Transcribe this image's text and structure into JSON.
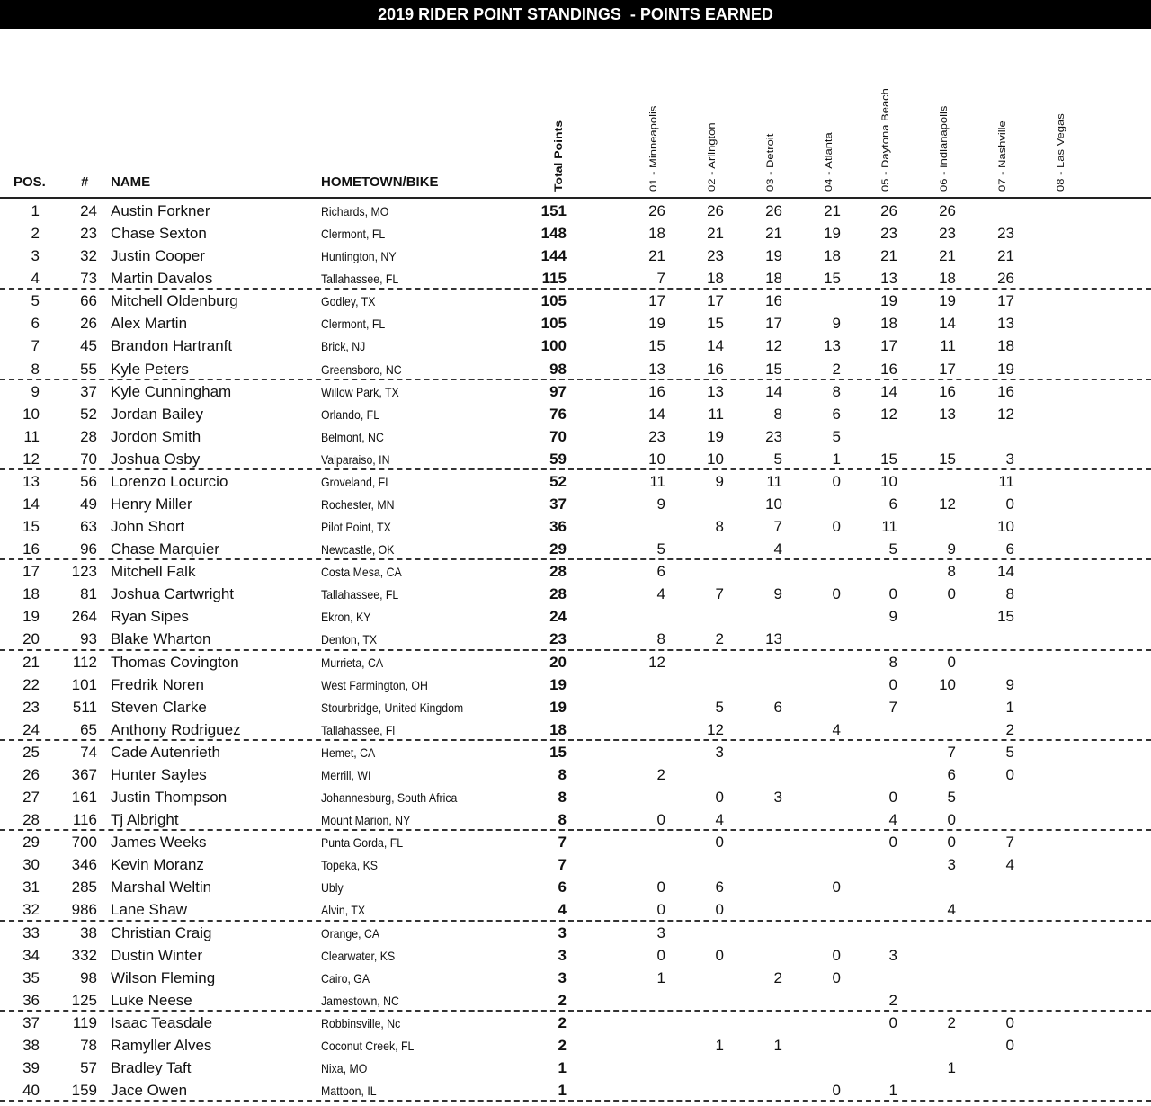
{
  "title": "2019 RIDER POINT STANDINGS  - POINTS EARNED",
  "headers": {
    "pos": "POS.",
    "num": "#",
    "name": "NAME",
    "hometown": "HOMETOWN/BIKE",
    "total": "Total Points",
    "races": [
      "01 - Minneapolis",
      "02 - Arlington",
      "03 - Detroit",
      "04 - Atlanta",
      "05 - Daytona Beach",
      "06 - Indianapolis",
      "07 - Nashville",
      "08 - Las Vegas"
    ]
  },
  "rows": [
    {
      "pos": "1",
      "num": "24",
      "name": "Austin Forkner",
      "town": "Richards, MO",
      "total": "151",
      "pts": [
        "26",
        "26",
        "26",
        "21",
        "26",
        "26",
        "",
        ""
      ]
    },
    {
      "pos": "2",
      "num": "23",
      "name": "Chase Sexton",
      "town": "Clermont, FL",
      "total": "148",
      "pts": [
        "18",
        "21",
        "21",
        "19",
        "23",
        "23",
        "23",
        ""
      ]
    },
    {
      "pos": "3",
      "num": "32",
      "name": "Justin Cooper",
      "town": "Huntington, NY",
      "total": "144",
      "pts": [
        "21",
        "23",
        "19",
        "18",
        "21",
        "21",
        "21",
        ""
      ]
    },
    {
      "pos": "4",
      "num": "73",
      "name": "Martin Davalos",
      "town": "Tallahassee, FL",
      "total": "115",
      "pts": [
        "7",
        "18",
        "18",
        "15",
        "13",
        "18",
        "26",
        ""
      ]
    },
    {
      "pos": "5",
      "num": "66",
      "name": "Mitchell Oldenburg",
      "town": "Godley, TX",
      "total": "105",
      "pts": [
        "17",
        "17",
        "16",
        "",
        "19",
        "19",
        "17",
        ""
      ]
    },
    {
      "pos": "6",
      "num": "26",
      "name": "Alex Martin",
      "town": "Clermont, FL",
      "total": "105",
      "pts": [
        "19",
        "15",
        "17",
        "9",
        "18",
        "14",
        "13",
        ""
      ]
    },
    {
      "pos": "7",
      "num": "45",
      "name": "Brandon Hartranft",
      "town": "Brick, NJ",
      "total": "100",
      "pts": [
        "15",
        "14",
        "12",
        "13",
        "17",
        "11",
        "18",
        ""
      ]
    },
    {
      "pos": "8",
      "num": "55",
      "name": "Kyle Peters",
      "town": "Greensboro, NC",
      "total": "98",
      "pts": [
        "13",
        "16",
        "15",
        "2",
        "16",
        "17",
        "19",
        ""
      ]
    },
    {
      "pos": "9",
      "num": "37",
      "name": "Kyle Cunningham",
      "town": "Willow Park, TX",
      "total": "97",
      "pts": [
        "16",
        "13",
        "14",
        "8",
        "14",
        "16",
        "16",
        ""
      ]
    },
    {
      "pos": "10",
      "num": "52",
      "name": "Jordan Bailey",
      "town": "Orlando, FL",
      "total": "76",
      "pts": [
        "14",
        "11",
        "8",
        "6",
        "12",
        "13",
        "12",
        ""
      ]
    },
    {
      "pos": "11",
      "num": "28",
      "name": "Jordon Smith",
      "town": "Belmont, NC",
      "total": "70",
      "pts": [
        "23",
        "19",
        "23",
        "5",
        "",
        "",
        "",
        ""
      ]
    },
    {
      "pos": "12",
      "num": "70",
      "name": "Joshua Osby",
      "town": "Valparaiso, IN",
      "total": "59",
      "pts": [
        "10",
        "10",
        "5",
        "1",
        "15",
        "15",
        "3",
        ""
      ]
    },
    {
      "pos": "13",
      "num": "56",
      "name": "Lorenzo Locurcio",
      "town": "Groveland, FL",
      "total": "52",
      "pts": [
        "11",
        "9",
        "11",
        "0",
        "10",
        "",
        "11",
        ""
      ]
    },
    {
      "pos": "14",
      "num": "49",
      "name": "Henry Miller",
      "town": "Rochester, MN",
      "total": "37",
      "pts": [
        "9",
        "",
        "10",
        "",
        "6",
        "12",
        "0",
        ""
      ]
    },
    {
      "pos": "15",
      "num": "63",
      "name": "John Short",
      "town": "Pilot Point, TX",
      "total": "36",
      "pts": [
        "",
        "8",
        "7",
        "0",
        "11",
        "",
        "10",
        ""
      ]
    },
    {
      "pos": "16",
      "num": "96",
      "name": "Chase Marquier",
      "town": "Newcastle, OK",
      "total": "29",
      "pts": [
        "5",
        "",
        "4",
        "",
        "5",
        "9",
        "6",
        ""
      ]
    },
    {
      "pos": "17",
      "num": "123",
      "name": "Mitchell Falk",
      "town": "Costa Mesa, CA",
      "total": "28",
      "pts": [
        "6",
        "",
        "",
        "",
        "",
        "8",
        "14",
        ""
      ]
    },
    {
      "pos": "18",
      "num": "81",
      "name": "Joshua Cartwright",
      "town": "Tallahassee, FL",
      "total": "28",
      "pts": [
        "4",
        "7",
        "9",
        "0",
        "0",
        "0",
        "8",
        ""
      ]
    },
    {
      "pos": "19",
      "num": "264",
      "name": "Ryan Sipes",
      "town": "Ekron, KY",
      "total": "24",
      "pts": [
        "",
        "",
        "",
        "",
        "9",
        "",
        "15",
        ""
      ]
    },
    {
      "pos": "20",
      "num": "93",
      "name": "Blake Wharton",
      "town": "Denton, TX",
      "total": "23",
      "pts": [
        "8",
        "2",
        "13",
        "",
        "",
        "",
        "",
        ""
      ]
    },
    {
      "pos": "21",
      "num": "112",
      "name": "Thomas Covington",
      "town": "Murrieta, CA",
      "total": "20",
      "pts": [
        "12",
        "",
        "",
        "",
        "8",
        "0",
        "",
        ""
      ]
    },
    {
      "pos": "22",
      "num": "101",
      "name": "Fredrik Noren",
      "town": "West Farmington, OH",
      "total": "19",
      "pts": [
        "",
        "",
        "",
        "",
        "0",
        "10",
        "9",
        ""
      ]
    },
    {
      "pos": "23",
      "num": "511",
      "name": "Steven Clarke",
      "town": "Stourbridge, United Kingdom",
      "total": "19",
      "pts": [
        "",
        "5",
        "6",
        "",
        "7",
        "",
        "1",
        ""
      ]
    },
    {
      "pos": "24",
      "num": "65",
      "name": "Anthony Rodriguez",
      "town": "Tallahassee, Fl",
      "total": "18",
      "pts": [
        "",
        "12",
        "",
        "4",
        "",
        "",
        "2",
        ""
      ]
    },
    {
      "pos": "25",
      "num": "74",
      "name": "Cade Autenrieth",
      "town": "Hemet, CA",
      "total": "15",
      "pts": [
        "",
        "3",
        "",
        "",
        "",
        "7",
        "5",
        ""
      ]
    },
    {
      "pos": "26",
      "num": "367",
      "name": "Hunter Sayles",
      "town": "Merrill, WI",
      "total": "8",
      "pts": [
        "2",
        "",
        "",
        "",
        "",
        "6",
        "0",
        ""
      ]
    },
    {
      "pos": "27",
      "num": "161",
      "name": "Justin Thompson",
      "town": "Johannesburg, South Africa",
      "total": "8",
      "pts": [
        "",
        "0",
        "3",
        "",
        "0",
        "5",
        "",
        ""
      ]
    },
    {
      "pos": "28",
      "num": "116",
      "name": "Tj Albright",
      "town": "Mount Marion, NY",
      "total": "8",
      "pts": [
        "0",
        "4",
        "",
        "",
        "4",
        "0",
        "",
        ""
      ]
    },
    {
      "pos": "29",
      "num": "700",
      "name": "James Weeks",
      "town": "Punta Gorda, FL",
      "total": "7",
      "pts": [
        "",
        "0",
        "",
        "",
        "0",
        "0",
        "7",
        ""
      ]
    },
    {
      "pos": "30",
      "num": "346",
      "name": "Kevin Moranz",
      "town": "Topeka, KS",
      "total": "7",
      "pts": [
        "",
        "",
        "",
        "",
        "",
        "3",
        "4",
        ""
      ]
    },
    {
      "pos": "31",
      "num": "285",
      "name": "Marshal Weltin",
      "town": "Ubly",
      "total": "6",
      "pts": [
        "0",
        "6",
        "",
        "0",
        "",
        "",
        "",
        ""
      ]
    },
    {
      "pos": "32",
      "num": "986",
      "name": "Lane Shaw",
      "town": "Alvin, TX",
      "total": "4",
      "pts": [
        "0",
        "0",
        "",
        "",
        "",
        "4",
        "",
        ""
      ]
    },
    {
      "pos": "33",
      "num": "38",
      "name": "Christian Craig",
      "town": "Orange, CA",
      "total": "3",
      "pts": [
        "3",
        "",
        "",
        "",
        "",
        "",
        "",
        ""
      ]
    },
    {
      "pos": "34",
      "num": "332",
      "name": "Dustin Winter",
      "town": "Clearwater, KS",
      "total": "3",
      "pts": [
        "0",
        "0",
        "",
        "0",
        "3",
        "",
        "",
        ""
      ]
    },
    {
      "pos": "35",
      "num": "98",
      "name": "Wilson Fleming",
      "town": "Cairo, GA",
      "total": "3",
      "pts": [
        "1",
        "",
        "2",
        "0",
        "",
        "",
        "",
        ""
      ]
    },
    {
      "pos": "36",
      "num": "125",
      "name": "Luke Neese",
      "town": "Jamestown, NC",
      "total": "2",
      "pts": [
        "",
        "",
        "",
        "",
        "2",
        "",
        "",
        ""
      ]
    },
    {
      "pos": "37",
      "num": "119",
      "name": "Isaac Teasdale",
      "town": "Robbinsville, Nc",
      "total": "2",
      "pts": [
        "",
        "",
        "",
        "",
        "0",
        "2",
        "0",
        ""
      ]
    },
    {
      "pos": "38",
      "num": "78",
      "name": "Ramyller Alves",
      "town": "Coconut Creek, FL",
      "total": "2",
      "pts": [
        "",
        "1",
        "1",
        "",
        "",
        "",
        "0",
        ""
      ]
    },
    {
      "pos": "39",
      "num": "57",
      "name": "Bradley Taft",
      "town": "Nixa, MO",
      "total": "1",
      "pts": [
        "",
        "",
        "",
        "",
        "",
        "1",
        "",
        ""
      ]
    },
    {
      "pos": "40",
      "num": "159",
      "name": "Jace Owen",
      "town": "Mattoon, IL",
      "total": "1",
      "pts": [
        "",
        "",
        "",
        "0",
        "1",
        "",
        "",
        ""
      ]
    }
  ]
}
